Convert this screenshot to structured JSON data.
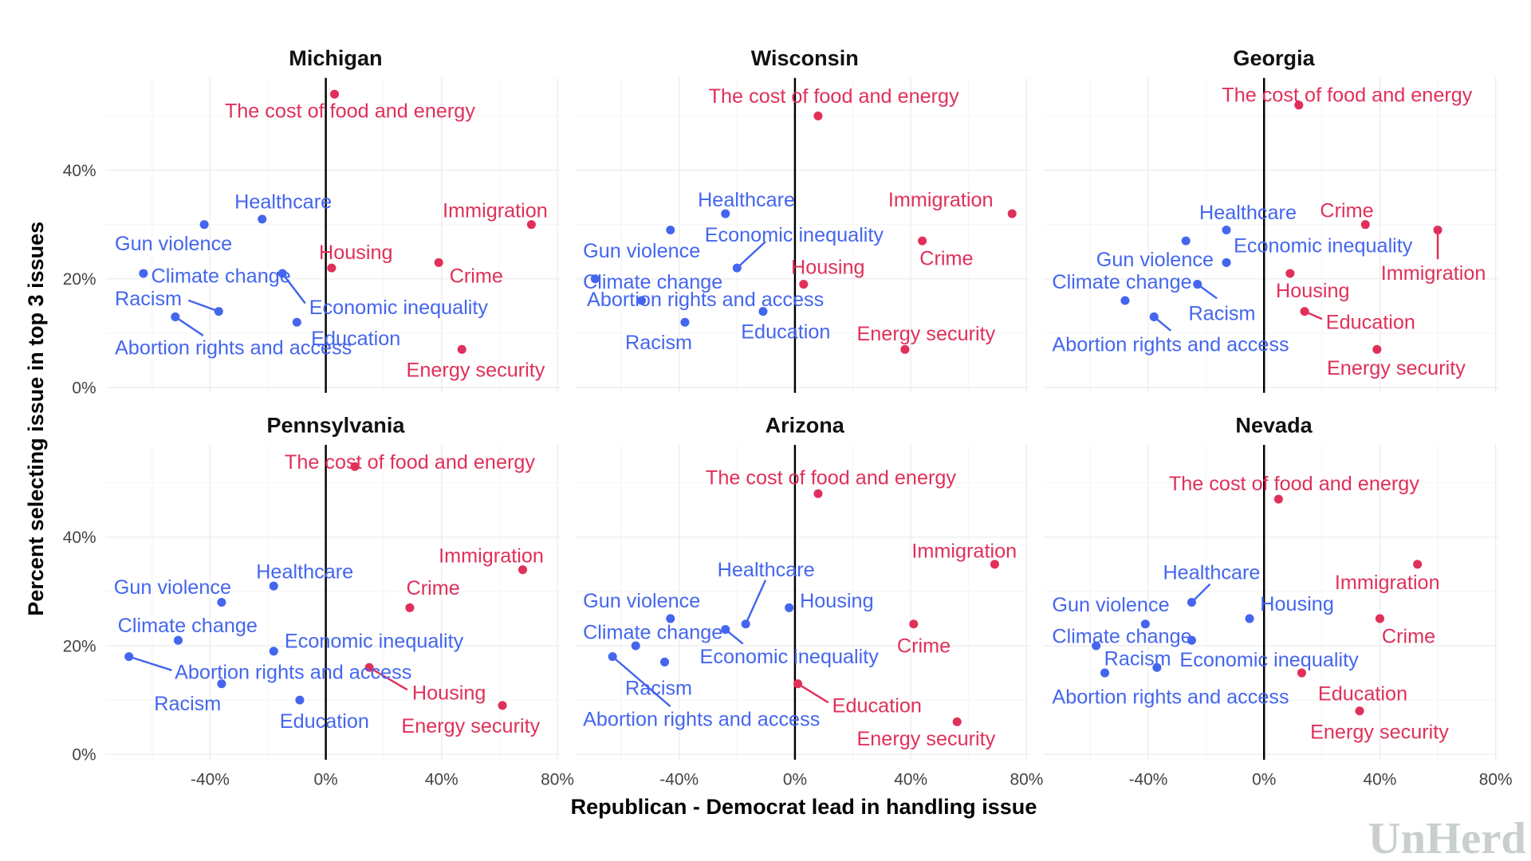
{
  "colors": {
    "dem": "#4466ee",
    "rep": "#e0305a"
  },
  "axes": {
    "xlabel": "Republican - Democrat lead in handling issue",
    "ylabel": "Percent selecting issue in top 3 issues",
    "xticks": [
      "-40%",
      "0%",
      "40%",
      "80%"
    ],
    "xtick_values": [
      -40,
      0,
      40,
      80
    ],
    "yticks": [
      "0%",
      "20%",
      "40%"
    ],
    "ytick_values": [
      0,
      20,
      40
    ],
    "xlim": [
      -76,
      81
    ],
    "ylim": [
      -1,
      57
    ],
    "grid": true
  },
  "logo": "UnHerd",
  "chart_data": [
    {
      "type": "scatter",
      "title": "Michigan",
      "points": [
        {
          "label": "The cost of food and energy",
          "x": 3,
          "y": 54,
          "color": "rep"
        },
        {
          "label": "Immigration",
          "x": 71,
          "y": 30,
          "color": "rep"
        },
        {
          "label": "Housing",
          "x": 2,
          "y": 22,
          "color": "rep"
        },
        {
          "label": "Crime",
          "x": 39,
          "y": 23,
          "color": "rep"
        },
        {
          "label": "Energy security",
          "x": 47,
          "y": 7,
          "color": "rep"
        },
        {
          "label": "Healthcare",
          "x": -22,
          "y": 31,
          "color": "dem"
        },
        {
          "label": "Gun violence",
          "x": -42,
          "y": 30,
          "color": "dem"
        },
        {
          "label": "Climate change",
          "x": -63,
          "y": 21,
          "color": "dem"
        },
        {
          "label": "Economic inequality",
          "x": -15,
          "y": 21,
          "color": "dem"
        },
        {
          "label": "Racism",
          "x": -37,
          "y": 14,
          "color": "dem"
        },
        {
          "label": "Abortion rights and access",
          "x": -52,
          "y": 13,
          "color": "dem"
        },
        {
          "label": "Education",
          "x": -10,
          "y": 12,
          "color": "dem"
        }
      ]
    },
    {
      "type": "scatter",
      "title": "Wisconsin",
      "points": [
        {
          "label": "The cost of food and energy",
          "x": 8,
          "y": 50,
          "color": "rep"
        },
        {
          "label": "Immigration",
          "x": 75,
          "y": 32,
          "color": "rep"
        },
        {
          "label": "Crime",
          "x": 44,
          "y": 27,
          "color": "rep"
        },
        {
          "label": "Housing",
          "x": 3,
          "y": 19,
          "color": "rep"
        },
        {
          "label": "Energy security",
          "x": 38,
          "y": 7,
          "color": "rep"
        },
        {
          "label": "Healthcare",
          "x": -24,
          "y": 32,
          "color": "dem"
        },
        {
          "label": "Gun violence",
          "x": -43,
          "y": 29,
          "color": "dem"
        },
        {
          "label": "Economic inequality",
          "x": -20,
          "y": 22,
          "color": "dem"
        },
        {
          "label": "Climate change",
          "x": -69,
          "y": 20,
          "color": "dem"
        },
        {
          "label": "Abortion rights and access",
          "x": -53,
          "y": 16,
          "color": "dem"
        },
        {
          "label": "Education",
          "x": -11,
          "y": 14,
          "color": "dem"
        },
        {
          "label": "Racism",
          "x": -38,
          "y": 12,
          "color": "dem"
        }
      ]
    },
    {
      "type": "scatter",
      "title": "Georgia",
      "points": [
        {
          "label": "The cost of food and energy",
          "x": 12,
          "y": 52,
          "color": "rep"
        },
        {
          "label": "Crime",
          "x": 35,
          "y": 30,
          "color": "rep"
        },
        {
          "label": "Immigration",
          "x": 60,
          "y": 29,
          "color": "rep"
        },
        {
          "label": "Housing",
          "x": 9,
          "y": 21,
          "color": "rep"
        },
        {
          "label": "Education",
          "x": 14,
          "y": 14,
          "color": "rep"
        },
        {
          "label": "Energy security",
          "x": 39,
          "y": 7,
          "color": "rep"
        },
        {
          "label": "Healthcare",
          "x": -13,
          "y": 29,
          "color": "dem"
        },
        {
          "label": "Economic inequality",
          "x": -13,
          "y": 23,
          "color": "dem"
        },
        {
          "label": "Gun violence",
          "x": -27,
          "y": 27,
          "color": "dem"
        },
        {
          "label": "Climate change",
          "x": -48,
          "y": 16,
          "color": "dem"
        },
        {
          "label": "Racism",
          "x": -23,
          "y": 19,
          "color": "dem"
        },
        {
          "label": "Abortion rights and access",
          "x": -38,
          "y": 13,
          "color": "dem"
        }
      ]
    },
    {
      "type": "scatter",
      "title": "Pennsylvania",
      "points": [
        {
          "label": "The cost of food and energy",
          "x": 10,
          "y": 53,
          "color": "rep"
        },
        {
          "label": "Immigration",
          "x": 68,
          "y": 34,
          "color": "rep"
        },
        {
          "label": "Crime",
          "x": 29,
          "y": 27,
          "color": "rep"
        },
        {
          "label": "Housing",
          "x": 15,
          "y": 16,
          "color": "rep"
        },
        {
          "label": "Energy security",
          "x": 61,
          "y": 9,
          "color": "rep"
        },
        {
          "label": "Healthcare",
          "x": -18,
          "y": 31,
          "color": "dem"
        },
        {
          "label": "Gun violence",
          "x": -36,
          "y": 28,
          "color": "dem"
        },
        {
          "label": "Climate change",
          "x": -51,
          "y": 21,
          "color": "dem"
        },
        {
          "label": "Economic inequality",
          "x": -18,
          "y": 19,
          "color": "dem"
        },
        {
          "label": "Abortion rights and access",
          "x": -68,
          "y": 18,
          "color": "dem"
        },
        {
          "label": "Racism",
          "x": -36,
          "y": 13,
          "color": "dem"
        },
        {
          "label": "Education",
          "x": -9,
          "y": 10,
          "color": "dem"
        }
      ]
    },
    {
      "type": "scatter",
      "title": "Arizona",
      "points": [
        {
          "label": "The cost of food and energy",
          "x": 8,
          "y": 48,
          "color": "rep"
        },
        {
          "label": "Immigration",
          "x": 69,
          "y": 35,
          "color": "rep"
        },
        {
          "label": "Crime",
          "x": 41,
          "y": 24,
          "color": "rep"
        },
        {
          "label": "Housing",
          "x": -2,
          "y": 27,
          "color": "dem"
        },
        {
          "label": "Education",
          "x": 1,
          "y": 13,
          "color": "rep"
        },
        {
          "label": "Energy security",
          "x": 56,
          "y": 6,
          "color": "rep"
        },
        {
          "label": "Healthcare",
          "x": -17,
          "y": 24,
          "color": "dem"
        },
        {
          "label": "Gun violence",
          "x": -43,
          "y": 25,
          "color": "dem"
        },
        {
          "label": "Climate change",
          "x": -55,
          "y": 20,
          "color": "dem"
        },
        {
          "label": "Economic inequality",
          "x": -24,
          "y": 23,
          "color": "dem"
        },
        {
          "label": "Racism",
          "x": -45,
          "y": 17,
          "color": "dem"
        },
        {
          "label": "Abortion rights and access",
          "x": -63,
          "y": 18,
          "color": "dem"
        }
      ]
    },
    {
      "type": "scatter",
      "title": "Nevada",
      "points": [
        {
          "label": "The cost of food and energy",
          "x": 5,
          "y": 47,
          "color": "rep"
        },
        {
          "label": "Immigration",
          "x": 53,
          "y": 35,
          "color": "rep"
        },
        {
          "label": "Crime",
          "x": 40,
          "y": 25,
          "color": "rep"
        },
        {
          "label": "Housing",
          "x": -5,
          "y": 25,
          "color": "dem"
        },
        {
          "label": "Education",
          "x": 13,
          "y": 15,
          "color": "rep"
        },
        {
          "label": "Energy security",
          "x": 33,
          "y": 8,
          "color": "rep"
        },
        {
          "label": "Healthcare",
          "x": -25,
          "y": 28,
          "color": "dem"
        },
        {
          "label": "Gun violence",
          "x": -41,
          "y": 24,
          "color": "dem"
        },
        {
          "label": "Climate change",
          "x": -58,
          "y": 20,
          "color": "dem"
        },
        {
          "label": "Economic inequality",
          "x": -25,
          "y": 21,
          "color": "dem"
        },
        {
          "label": "Racism",
          "x": -37,
          "y": 16,
          "color": "dem"
        },
        {
          "label": "Abortion rights and access",
          "x": -55,
          "y": 15,
          "color": "dem"
        }
      ]
    }
  ]
}
